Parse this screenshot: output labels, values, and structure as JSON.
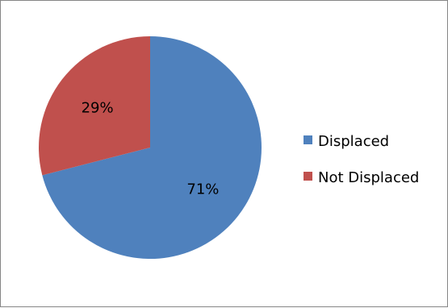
{
  "chart_data": {
    "type": "pie",
    "title": "",
    "categories": [
      "Displaced",
      "Not Displaced"
    ],
    "values": [
      71,
      29
    ],
    "labels": [
      "71%",
      "29%"
    ],
    "colors": [
      "#4F81BD",
      "#C0504D"
    ],
    "start_angle_deg": 0,
    "direction": "clockwise",
    "legend_position": "right",
    "legend": [
      {
        "label": "Displaced",
        "color": "#4F81BD"
      },
      {
        "label": "Not Displaced",
        "color": "#C0504D"
      }
    ]
  }
}
